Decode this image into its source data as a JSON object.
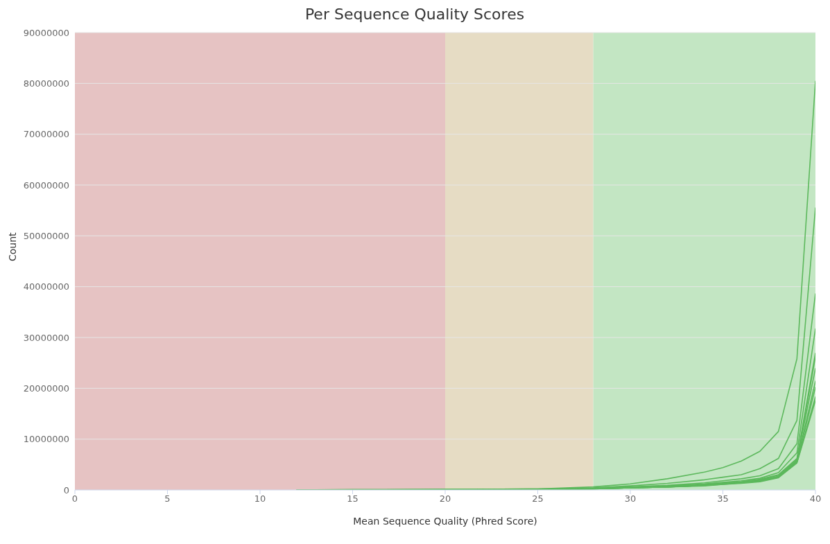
{
  "chart_data": {
    "type": "line",
    "title": "Per Sequence Quality Scores",
    "xlabel": "Mean Sequence Quality (Phred Score)",
    "ylabel": "Count",
    "x": [
      12,
      15,
      20,
      25,
      28,
      30,
      32,
      34,
      35,
      36,
      37,
      38,
      39,
      40
    ],
    "series": [
      {
        "color": "#5cb85c",
        "values": [
          0,
          100000,
          100000,
          200000,
          600000,
          1200000,
          2200000,
          3500000,
          4400000,
          5700000,
          7600000,
          11500000,
          25800000,
          80400000
        ]
      },
      {
        "color": "#5cb85c",
        "values": [
          0,
          0,
          100000,
          200000,
          400000,
          800000,
          1300000,
          2000000,
          2500000,
          3000000,
          4200000,
          6200000,
          13700000,
          55500000
        ]
      },
      {
        "color": "#5cb85c",
        "values": [
          0,
          0,
          100000,
          100000,
          300000,
          600000,
          900000,
          1400000,
          1800000,
          2200000,
          2800000,
          4200000,
          9100000,
          38600000
        ]
      },
      {
        "color": "#5cb85c",
        "values": [
          0,
          0,
          100000,
          100000,
          300000,
          500000,
          800000,
          1200000,
          1500000,
          1800000,
          2300000,
          3400000,
          7300000,
          31700000
        ]
      },
      {
        "color": "#5cb85c",
        "values": [
          0,
          0,
          0,
          100000,
          300000,
          500000,
          700000,
          1100000,
          1400000,
          1600000,
          2100000,
          3000000,
          6200000,
          26900000
        ]
      },
      {
        "color": "#5cb85c",
        "values": [
          0,
          0,
          0,
          100000,
          200000,
          400000,
          600000,
          900000,
          1200000,
          1400000,
          1900000,
          2700000,
          5800000,
          26200000
        ]
      },
      {
        "color": "#5cb85c",
        "values": [
          0,
          0,
          0,
          100000,
          300000,
          500000,
          700000,
          1000000,
          1300000,
          1600000,
          2000000,
          2900000,
          6000000,
          23900000
        ]
      },
      {
        "color": "#5cb85c",
        "values": [
          0,
          0,
          0,
          100000,
          200000,
          400000,
          600000,
          900000,
          1200000,
          1500000,
          1800000,
          2600000,
          5600000,
          21400000
        ]
      },
      {
        "color": "#5cb85c",
        "values": [
          0,
          0,
          0,
          100000,
          200000,
          400000,
          600000,
          900000,
          1200000,
          1400000,
          1700000,
          2500000,
          5500000,
          20200000
        ]
      },
      {
        "color": "#5cb85c",
        "values": [
          0,
          0,
          0,
          100000,
          200000,
          400000,
          600000,
          900000,
          1100000,
          1400000,
          1700000,
          2500000,
          5400000,
          18300000
        ]
      },
      {
        "color": "#5cb85c",
        "values": [
          0,
          0,
          0,
          100000,
          200000,
          400000,
          600000,
          800000,
          1100000,
          1300000,
          1600000,
          2400000,
          5300000,
          17600000
        ]
      }
    ],
    "xlim": [
      0,
      40
    ],
    "xticks": [
      0,
      5,
      10,
      15,
      20,
      25,
      30,
      35,
      40
    ],
    "ylim": [
      0,
      90000000
    ],
    "yticks": [
      0,
      10000000,
      20000000,
      30000000,
      40000000,
      50000000,
      60000000,
      70000000,
      80000000,
      90000000
    ],
    "bands": [
      {
        "axis": "x",
        "from": 0,
        "to": 20,
        "color": "#e6c3c3"
      },
      {
        "axis": "x",
        "from": 20,
        "to": 28,
        "color": "#e6dcc4"
      },
      {
        "axis": "x",
        "from": 28,
        "to": 40,
        "color": "#c3e6c3"
      }
    ],
    "grid": "y",
    "legend": false,
    "marker": "none",
    "line_style": "solid"
  }
}
